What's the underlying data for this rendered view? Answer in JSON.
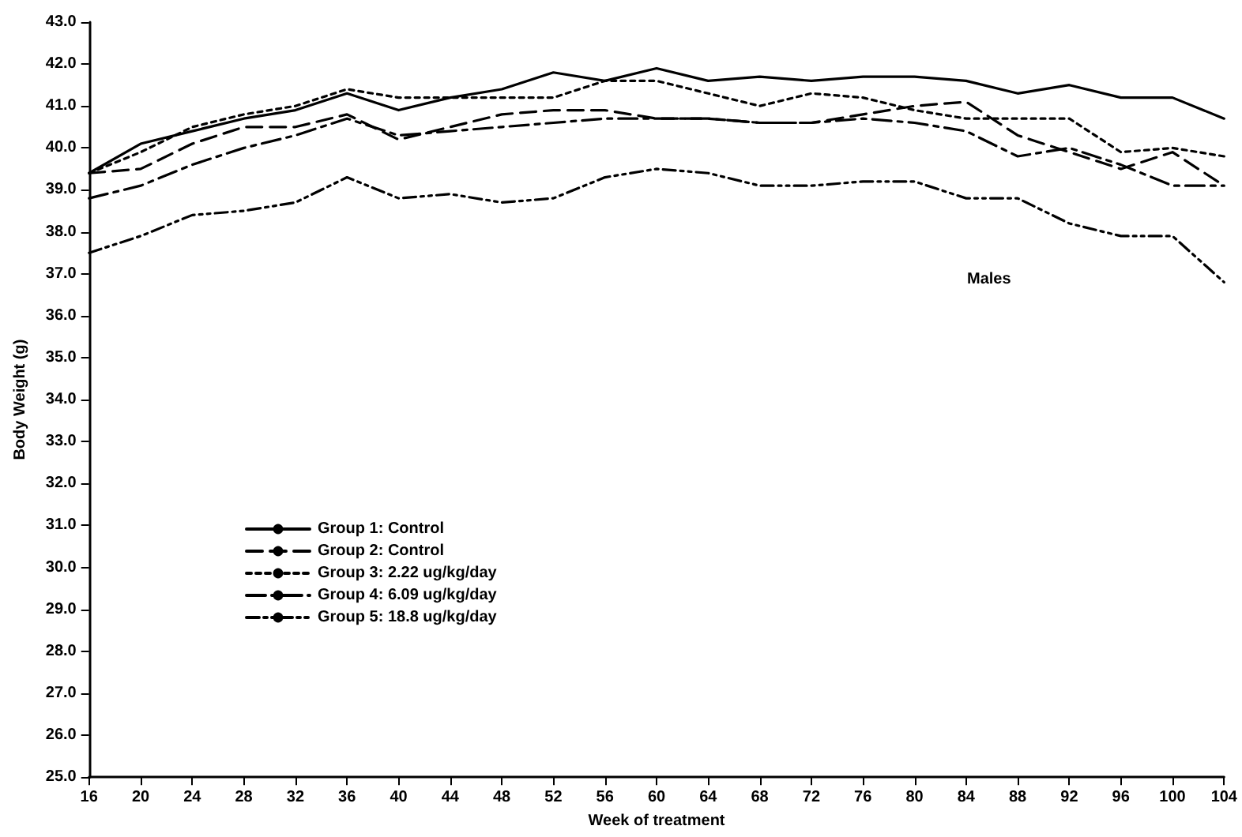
{
  "chart_data": {
    "type": "line",
    "xlabel": "Week of treatment",
    "ylabel": "Body Weight (g)",
    "annotations": [
      "Males"
    ],
    "x": [
      16,
      20,
      24,
      28,
      32,
      36,
      40,
      44,
      48,
      52,
      56,
      60,
      64,
      68,
      72,
      76,
      80,
      84,
      88,
      92,
      96,
      100,
      104
    ],
    "xlim": [
      16,
      104
    ],
    "xticks": [
      16,
      20,
      24,
      28,
      32,
      36,
      40,
      44,
      48,
      52,
      56,
      60,
      64,
      68,
      72,
      76,
      80,
      84,
      88,
      92,
      96,
      100,
      104
    ],
    "ylim": [
      25,
      43
    ],
    "yticks": [
      {
        "value": 25,
        "label": "25.0"
      },
      {
        "value": 26,
        "label": "26.0"
      },
      {
        "value": 27,
        "label": "27.0"
      },
      {
        "value": 28,
        "label": "28.0"
      },
      {
        "value": 29,
        "label": "29.0"
      },
      {
        "value": 30,
        "label": "30.0"
      },
      {
        "value": 31,
        "label": "31.0"
      },
      {
        "value": 32,
        "label": "32.0"
      },
      {
        "value": 33,
        "label": "33.0"
      },
      {
        "value": 34,
        "label": "34.0"
      },
      {
        "value": 35,
        "label": "35.0"
      },
      {
        "value": 36,
        "label": "36.0"
      },
      {
        "value": 37,
        "label": "37.0"
      },
      {
        "value": 38,
        "label": "38.0"
      },
      {
        "value": 39,
        "label": "39.0"
      },
      {
        "value": 40,
        "label": "40.0"
      },
      {
        "value": 41,
        "label": "41.0"
      },
      {
        "value": 42,
        "label": "42.0"
      },
      {
        "value": 43,
        "label": "43.0"
      }
    ],
    "grid": false,
    "legend": "left",
    "marker": "none",
    "series": [
      {
        "name": "Group 1: Control",
        "color": "#000000",
        "line_style": "solid",
        "values": [
          39.4,
          40.1,
          40.4,
          40.7,
          40.9,
          41.3,
          40.9,
          41.2,
          41.4,
          41.8,
          41.6,
          41.9,
          41.6,
          41.7,
          41.6,
          41.7,
          41.7,
          41.6,
          41.3,
          41.5,
          41.2,
          41.2,
          40.7
        ]
      },
      {
        "name": "Group 2: Control",
        "color": "#000000",
        "line_style": "dashed",
        "values": [
          39.4,
          39.5,
          40.1,
          40.5,
          40.5,
          40.8,
          40.2,
          40.5,
          40.8,
          40.9,
          40.9,
          40.7,
          40.7,
          40.6,
          40.6,
          40.8,
          41.0,
          41.1,
          40.3,
          39.9,
          39.5,
          39.9,
          39.1
        ]
      },
      {
        "name": "Group 3: 2.22 ug/kg/day",
        "color": "#000000",
        "line_style": "dotted",
        "values": [
          39.4,
          39.9,
          40.5,
          40.8,
          41.0,
          41.4,
          41.2,
          41.2,
          41.2,
          41.2,
          41.6,
          41.6,
          41.3,
          41.0,
          41.3,
          41.2,
          40.9,
          40.7,
          40.7,
          40.7,
          39.9,
          40.0,
          39.8
        ]
      },
      {
        "name": "Group 4: 6.09 ug/kg/day",
        "color": "#000000",
        "line_style": "dashdot",
        "values": [
          38.8,
          39.1,
          39.6,
          40.0,
          40.3,
          40.7,
          40.3,
          40.4,
          40.5,
          40.6,
          40.7,
          40.7,
          40.7,
          40.6,
          40.6,
          40.7,
          40.6,
          40.4,
          39.8,
          40.0,
          39.6,
          39.1,
          39.1
        ]
      },
      {
        "name": "Group 5: 18.8 ug/kg/day",
        "color": "#000000",
        "line_style": "dashdotdot",
        "values": [
          37.5,
          37.9,
          38.4,
          38.5,
          38.7,
          39.3,
          38.8,
          38.9,
          38.7,
          38.8,
          39.3,
          39.5,
          39.4,
          39.1,
          39.1,
          39.2,
          39.2,
          38.8,
          38.8,
          38.2,
          37.9,
          37.9,
          36.8
        ]
      }
    ]
  }
}
